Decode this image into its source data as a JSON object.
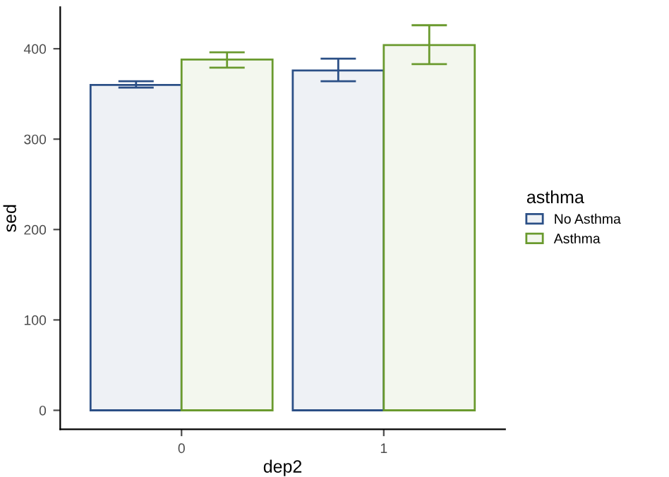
{
  "chart_data": {
    "type": "bar",
    "xlabel": "dep2",
    "ylabel": "sed",
    "legend_title": "asthma",
    "categories": [
      "0",
      "1"
    ],
    "series": [
      {
        "name": "No Asthma",
        "color": "#2b4f86",
        "values": [
          360,
          376
        ],
        "errors": [
          [
            357,
            364
          ],
          [
            364,
            389
          ]
        ]
      },
      {
        "name": "Asthma",
        "color": "#6a9a2e",
        "values": [
          388,
          404
        ],
        "errors": [
          [
            379,
            396
          ],
          [
            383,
            426
          ]
        ]
      }
    ],
    "ylim": [
      -21,
      446
    ],
    "yticks": [
      0,
      100,
      200,
      300,
      400
    ],
    "grid": false,
    "legend": "right"
  }
}
